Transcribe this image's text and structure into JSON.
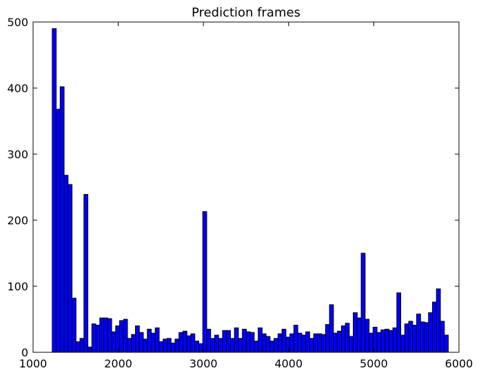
{
  "chart_data": {
    "type": "bar",
    "title": "Prediction frames",
    "xlabel": "",
    "ylabel": "",
    "xlim": [
      1000,
      6000
    ],
    "ylim": [
      0,
      500
    ],
    "x_ticks": [
      1000,
      2000,
      3000,
      4000,
      5000,
      6000
    ],
    "y_ticks": [
      0,
      100,
      200,
      300,
      400,
      500
    ],
    "grid": false,
    "legend": "none",
    "bar_color": "#0000ff",
    "edge_color": "#000000",
    "bin_width": 46.5,
    "bins_start": [
      1225,
      1271.5,
      1318,
      1364.5,
      1411,
      1457.5,
      1504,
      1550.5,
      1597,
      1643.5,
      1690,
      1736.5,
      1783,
      1829.5,
      1876,
      1922.5,
      1969,
      2015.5,
      2062,
      2108.5,
      2155,
      2201.5,
      2248,
      2294.5,
      2341,
      2387.5,
      2434,
      2480.5,
      2527,
      2573.5,
      2620,
      2666.5,
      2713,
      2759.5,
      2806,
      2852.5,
      2899,
      2945.5,
      2992,
      3038.5,
      3085,
      3131.5,
      3178,
      3224.5,
      3271,
      3317.5,
      3364,
      3410.5,
      3457,
      3503.5,
      3550,
      3596.5,
      3643,
      3689.5,
      3736,
      3782.5,
      3829,
      3875.5,
      3922,
      3968.5,
      4015,
      4061.5,
      4108,
      4154.5,
      4201,
      4247.5,
      4294,
      4340.5,
      4387,
      4433.5,
      4480,
      4526.5,
      4573,
      4619.5,
      4666,
      4712.5,
      4759,
      4805.5,
      4852,
      4898.5,
      4945,
      4991.5,
      5038,
      5084.5,
      5131,
      5177.5,
      5224,
      5270.5,
      5317,
      5363.5,
      5410,
      5456.5,
      5503,
      5549.5,
      5596,
      5642.5,
      5689,
      5735.5,
      5782,
      5828.5
    ],
    "values": [
      490,
      368,
      402,
      268,
      254,
      82,
      16,
      21,
      239,
      8,
      43,
      41,
      52,
      52,
      51,
      31,
      40,
      48,
      50,
      21,
      27,
      40,
      30,
      20,
      35,
      29,
      37,
      16,
      20,
      21,
      14,
      20,
      30,
      32,
      25,
      28,
      17,
      13,
      213,
      35,
      21,
      26,
      21,
      33,
      33,
      21,
      37,
      21,
      35,
      31,
      30,
      17,
      37,
      28,
      24,
      17,
      21,
      28,
      35,
      23,
      28,
      41,
      29,
      26,
      31,
      21,
      28,
      28,
      27,
      42,
      72,
      29,
      32,
      40,
      44,
      24,
      60,
      52,
      150,
      50,
      29,
      38,
      30,
      34,
      35,
      33,
      37,
      90,
      26,
      43,
      47,
      41,
      58,
      46,
      45,
      60,
      76,
      96,
      47,
      26
    ]
  }
}
